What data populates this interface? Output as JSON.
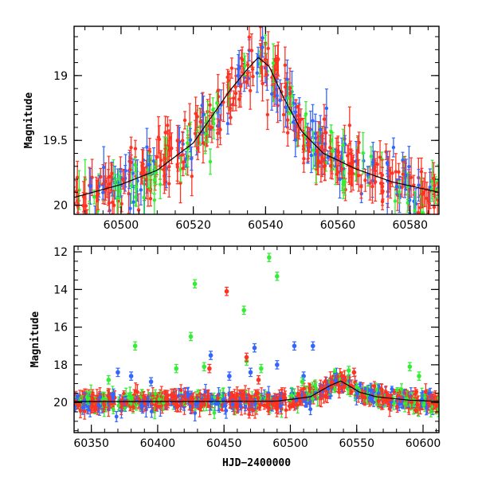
{
  "chart_data": [
    {
      "type": "scatter",
      "title": "",
      "xlabel": "",
      "ylabel": "Magnitude",
      "xlim": [
        60487,
        60588
      ],
      "ylim": [
        20.07,
        18.62
      ],
      "y_inverted": true,
      "grid": false,
      "legend": "none",
      "x_ticks": [
        60500,
        60520,
        60540,
        60560,
        60580
      ],
      "y_ticks": [
        19,
        19.5,
        20
      ],
      "series": [
        {
          "color": "#3366ff",
          "values": []
        },
        {
          "color": "#33ee33",
          "values": []
        },
        {
          "color": "#ff3322",
          "values": []
        }
      ],
      "model_curve": {
        "color": "#000000",
        "points": [
          [
            60487,
            19.94
          ],
          [
            60500,
            19.84
          ],
          [
            60510,
            19.73
          ],
          [
            60520,
            19.52
          ],
          [
            60530,
            19.12
          ],
          [
            60535,
            18.95
          ],
          [
            60538,
            18.86
          ],
          [
            60541,
            18.93
          ],
          [
            60545,
            19.17
          ],
          [
            60550,
            19.43
          ],
          [
            60556,
            19.6
          ],
          [
            60565,
            19.72
          ],
          [
            60575,
            19.82
          ],
          [
            60588,
            19.9
          ]
        ]
      }
    },
    {
      "type": "scatter",
      "title": "",
      "xlabel": "HJD−2400000",
      "ylabel": "Magnitude",
      "xlim": [
        60337,
        60612
      ],
      "ylim": [
        21.6,
        11.7
      ],
      "y_inverted": true,
      "grid": false,
      "legend": "none",
      "x_ticks": [
        60350,
        60400,
        60450,
        60500,
        60550,
        60600
      ],
      "y_ticks": [
        12,
        14,
        16,
        18,
        20
      ],
      "series": [
        {
          "color": "#3366ff",
          "values": [
            [
              60440,
              17.5
            ],
            [
              60470,
              18.4
            ],
            [
              60473,
              17.1
            ],
            [
              60503,
              17.0
            ],
            [
              60517,
              17.0
            ],
            [
              60490,
              18.0
            ],
            [
              60454,
              18.6
            ],
            [
              60510,
              18.6
            ],
            [
              60370,
              18.4
            ],
            [
              60380,
              18.6
            ],
            [
              60395,
              18.9
            ]
          ]
        },
        {
          "color": "#33ee33",
          "values": [
            [
              60484,
              12.3
            ],
            [
              60490,
              13.3
            ],
            [
              60428,
              13.7
            ],
            [
              60465,
              15.1
            ],
            [
              60425,
              16.5
            ],
            [
              60383,
              17.0
            ],
            [
              60467,
              17.8
            ],
            [
              60478,
              18.2
            ],
            [
              60363,
              18.8
            ],
            [
              60414,
              18.2
            ],
            [
              60435,
              18.1
            ],
            [
              60590,
              18.1
            ],
            [
              60597,
              18.6
            ],
            [
              60509,
              18.9
            ],
            [
              60544,
              18.3
            ]
          ]
        },
        {
          "color": "#ff3322",
          "values": [
            [
              60452,
              14.1
            ],
            [
              60467,
              17.6
            ],
            [
              60439,
              18.2
            ],
            [
              60548,
              18.4
            ],
            [
              60539,
              18.6
            ],
            [
              60476,
              18.8
            ]
          ]
        }
      ],
      "model_curve": {
        "color": "#000000",
        "points": [
          [
            60337,
            19.95
          ],
          [
            60420,
            19.95
          ],
          [
            60490,
            19.93
          ],
          [
            60515,
            19.7
          ],
          [
            60530,
            19.1
          ],
          [
            60538,
            18.86
          ],
          [
            60545,
            19.15
          ],
          [
            60552,
            19.45
          ],
          [
            60565,
            19.7
          ],
          [
            60590,
            19.88
          ],
          [
            60612,
            19.94
          ]
        ]
      }
    }
  ]
}
